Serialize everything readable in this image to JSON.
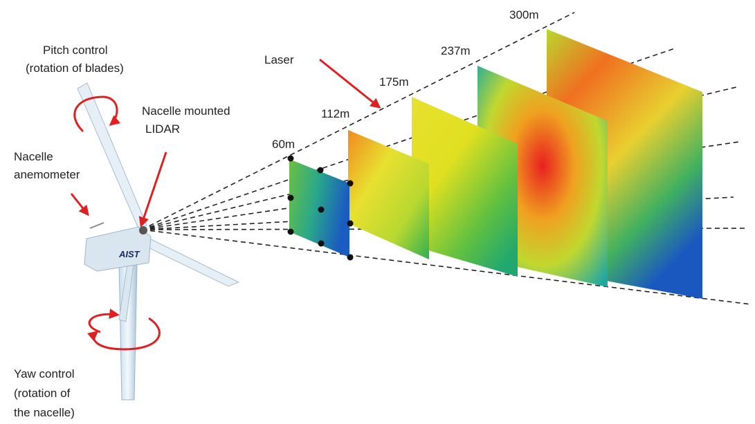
{
  "labels": {
    "pitch": [
      "Pitch control",
      "(rotation of blades)"
    ],
    "lidar": [
      "Nacelle mounted",
      "LIDAR"
    ],
    "anemometer": [
      "Nacelle",
      "anemometer"
    ],
    "yaw": [
      "Yaw control",
      "(rotation of",
      "the nacelle)"
    ],
    "laser": "Laser",
    "logo": "AIST"
  },
  "distances": [
    "60m",
    "112m",
    "175m",
    "237m",
    "300m"
  ]
}
